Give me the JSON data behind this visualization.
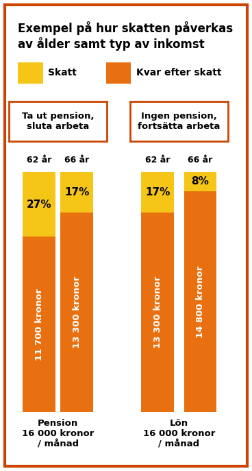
{
  "title": "Exempel på hur skatten påverkas\nav ålder samt typ av inkomst",
  "legend": [
    {
      "label": "Skatt",
      "color": "#F5C518"
    },
    {
      "label": "Kvar efter skatt",
      "color": "#E87010"
    }
  ],
  "groups": [
    {
      "group_label": "Pension\n16 000 kronor\n/ månad",
      "box_label": "Ta ut pension,\nsluta arbeta",
      "bars": [
        {
          "age": "62 år",
          "tax_pct": 27,
          "net_pct": 73,
          "net_label": "11 700 kronor"
        },
        {
          "age": "66 år",
          "tax_pct": 17,
          "net_pct": 83,
          "net_label": "13 300 kronor"
        }
      ]
    },
    {
      "group_label": "Lön\n16 000 kronor\n/ månad",
      "box_label": "Ingen pension,\nfortsätta arbeta",
      "bars": [
        {
          "age": "62 år",
          "tax_pct": 17,
          "net_pct": 83,
          "net_label": "13 300 kronor"
        },
        {
          "age": "66 år",
          "tax_pct": 8,
          "net_pct": 92,
          "net_label": "14 800 kronor"
        }
      ]
    }
  ],
  "color_tax": "#F5C518",
  "color_net": "#E87010",
  "color_border": "#CC4400",
  "background": "#FFFFFF",
  "fig_width": 3.68,
  "fig_height": 6.87,
  "dpi": 100
}
